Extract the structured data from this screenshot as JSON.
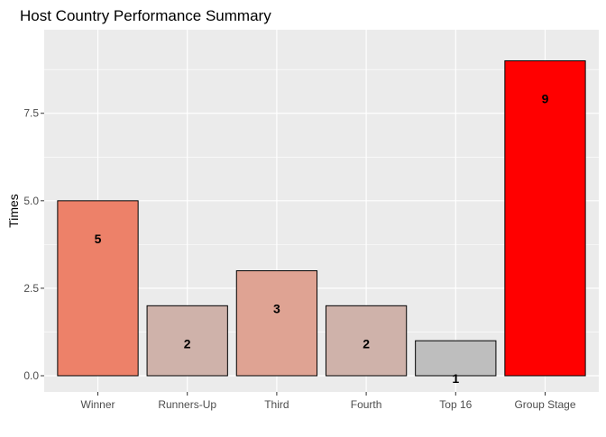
{
  "chart_data": {
    "type": "bar",
    "title": "Host Country Performance Summary",
    "xlabel": "",
    "ylabel": "Times",
    "categories": [
      "Winner",
      "Runners-Up",
      "Third",
      "Fourth",
      "Top 16",
      "Group Stage"
    ],
    "values": [
      5,
      2,
      3,
      2,
      1,
      9
    ],
    "data_labels": [
      "5",
      "2",
      "3",
      "2",
      "1",
      "9"
    ],
    "bar_colors": [
      "#ED8169",
      "#CFB2AA",
      "#DFA393",
      "#CFB2AA",
      "#BEBEBE",
      "#FF0000"
    ],
    "bar_outline": "#000000",
    "ylim": [
      0,
      9.45
    ],
    "yticks": [
      0,
      2.5,
      5,
      7.5
    ],
    "ytick_labels": [
      "0.0",
      "2.5",
      "5.0",
      "7.5"
    ],
    "grid": true,
    "legend": "none",
    "panel_background": "#EBEBEB",
    "grid_color": "#FFFFFF"
  }
}
